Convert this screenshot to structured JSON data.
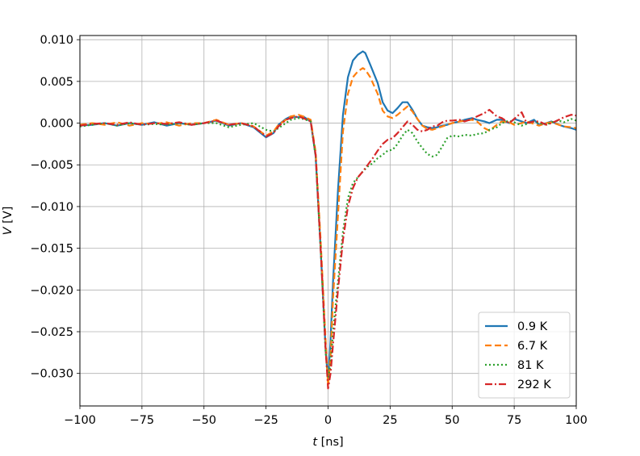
{
  "chart_data": {
    "type": "line",
    "xlabel_var": "t",
    "xlabel_unit": " [ns]",
    "ylabel_var": "V",
    "ylabel_unit": " [V]",
    "xlim": [
      -100,
      100
    ],
    "ylim": [
      -0.0339,
      0.0105
    ],
    "xticks": [
      -100,
      -75,
      -50,
      -25,
      0,
      25,
      50,
      75,
      100
    ],
    "xtick_labels": [
      "−100",
      "−75",
      "−50",
      "−25",
      "0",
      "25",
      "50",
      "75",
      "100"
    ],
    "yticks": [
      0.01,
      0.005,
      0.0,
      -0.005,
      -0.01,
      -0.015,
      -0.02,
      -0.025,
      -0.03
    ],
    "ytick_labels": [
      "0.010",
      "0.005",
      "0.000",
      "−0.005",
      "−0.010",
      "−0.015",
      "−0.020",
      "−0.025",
      "−0.030"
    ],
    "grid": true,
    "legend_position": "bottom-right",
    "series": [
      {
        "name": "0.9 K",
        "color": "#1f77b4",
        "dash": "solid",
        "x": [
          -100,
          -95,
          -90,
          -85,
          -80,
          -75,
          -70,
          -65,
          -60,
          -55,
          -50,
          -45,
          -40,
          -35,
          -30,
          -25,
          -22,
          -20,
          -17,
          -15,
          -12,
          -10,
          -7,
          -5,
          -3,
          -1,
          0,
          1,
          2,
          4,
          6,
          8,
          10,
          12,
          14,
          15,
          17,
          20,
          22,
          24,
          26,
          28,
          30,
          32,
          34,
          36,
          38,
          40,
          42,
          44,
          46,
          48,
          50,
          53,
          55,
          58,
          60,
          63,
          65,
          68,
          70,
          73,
          75,
          78,
          80,
          83,
          85,
          88,
          90,
          93,
          95,
          98,
          100
        ],
        "y": [
          -0.0003,
          -0.0002,
          0.0,
          -0.0003,
          0.0,
          -0.0002,
          0.0001,
          -0.0003,
          0.0,
          -0.0002,
          0.0,
          0.0003,
          -0.0003,
          0.0,
          -0.0005,
          -0.0017,
          -0.0012,
          -0.0002,
          0.0005,
          0.0008,
          0.0007,
          0.0008,
          0.0002,
          -0.004,
          -0.015,
          -0.027,
          -0.031,
          -0.026,
          -0.019,
          -0.008,
          0.001,
          0.0055,
          0.0075,
          0.0082,
          0.0086,
          0.0084,
          0.007,
          0.0048,
          0.0025,
          0.0015,
          0.0012,
          0.0018,
          0.0025,
          0.0025,
          0.0016,
          0.0005,
          -0.0003,
          -0.0005,
          -0.0006,
          -0.0005,
          -0.0003,
          -0.0002,
          0.0,
          0.0002,
          0.0004,
          0.0006,
          0.0004,
          0.0002,
          0.0,
          0.0004,
          0.0004,
          0.0,
          0.0005,
          0.0002,
          0.0,
          0.0004,
          -0.0002,
          0.0,
          0.0002,
          -0.0002,
          -0.0004,
          -0.0006,
          -0.0008
        ]
      },
      {
        "name": "6.7 K",
        "color": "#ff7f0e",
        "dash": "8,4",
        "x": [
          -100,
          -95,
          -90,
          -85,
          -80,
          -75,
          -70,
          -65,
          -60,
          -55,
          -50,
          -45,
          -40,
          -35,
          -30,
          -25,
          -22,
          -20,
          -17,
          -15,
          -12,
          -10,
          -7,
          -5,
          -3,
          -1,
          0,
          1,
          2,
          4,
          6,
          8,
          10,
          12,
          14,
          15,
          17,
          20,
          22,
          24,
          26,
          28,
          30,
          32,
          34,
          36,
          38,
          40,
          42,
          44,
          46,
          48,
          50,
          53,
          55,
          58,
          60,
          63,
          65,
          68,
          70,
          73,
          75,
          78,
          80,
          83,
          85,
          88,
          90,
          93,
          95,
          98,
          100
        ],
        "y": [
          -0.0002,
          0.0,
          -0.0002,
          0.0001,
          -0.0003,
          0.0,
          -0.0001,
          0.0001,
          -0.0003,
          0.0,
          0.0,
          0.0004,
          -0.0002,
          0.0,
          -0.0004,
          -0.0015,
          -0.001,
          -0.0002,
          0.0004,
          0.0008,
          0.001,
          0.0008,
          0.0004,
          -0.0035,
          -0.014,
          -0.026,
          -0.0315,
          -0.028,
          -0.021,
          -0.011,
          -0.001,
          0.0035,
          0.0055,
          0.0062,
          0.0066,
          0.0064,
          0.0055,
          0.0035,
          0.0015,
          0.0008,
          0.0006,
          0.001,
          0.0015,
          0.002,
          0.0014,
          0.0005,
          -0.0003,
          -0.0007,
          -0.0008,
          -0.0006,
          -0.0004,
          -0.0002,
          0.0,
          0.0002,
          0.0003,
          0.0004,
          0.0002,
          -0.0006,
          -0.0009,
          -0.0002,
          0.0002,
          0.0001,
          -0.0002,
          0.0,
          0.0002,
          -0.0001,
          -0.0003,
          0.0,
          0.0001,
          -0.0002,
          -0.0004,
          -0.0005,
          -0.0006
        ]
      },
      {
        "name": "81 K",
        "color": "#2ca02c",
        "dash": "2,3",
        "x": [
          -100,
          -95,
          -90,
          -85,
          -80,
          -75,
          -70,
          -65,
          -60,
          -55,
          -50,
          -45,
          -40,
          -35,
          -30,
          -25,
          -22,
          -20,
          -17,
          -15,
          -12,
          -10,
          -7,
          -5,
          -3,
          -1,
          0,
          1,
          2,
          4,
          6,
          8,
          10,
          12,
          14,
          16,
          18,
          20,
          22,
          24,
          26,
          28,
          30,
          32,
          34,
          36,
          38,
          40,
          42,
          44,
          46,
          48,
          50,
          53,
          55,
          58,
          60,
          63,
          65,
          68,
          70,
          73,
          75,
          78,
          80,
          83,
          85,
          88,
          90,
          93,
          95,
          98,
          100
        ],
        "y": [
          -0.0004,
          -0.0002,
          0.0,
          -0.0003,
          0.0,
          -0.0002,
          -0.0001,
          -0.0002,
          0.0,
          -0.0002,
          0.0,
          0.0,
          -0.0005,
          -0.0002,
          0.0,
          -0.0008,
          -0.001,
          -0.0006,
          0.0,
          0.0004,
          0.0006,
          0.0005,
          0.0002,
          -0.004,
          -0.015,
          -0.0275,
          -0.0305,
          -0.029,
          -0.025,
          -0.019,
          -0.013,
          -0.009,
          -0.0072,
          -0.0065,
          -0.0058,
          -0.0052,
          -0.0048,
          -0.0042,
          -0.0038,
          -0.0033,
          -0.0032,
          -0.0025,
          -0.0015,
          -0.0008,
          -0.0012,
          -0.0022,
          -0.003,
          -0.0037,
          -0.004,
          -0.0038,
          -0.0028,
          -0.0018,
          -0.0015,
          -0.0016,
          -0.0014,
          -0.0015,
          -0.0013,
          -0.0012,
          -0.0008,
          -0.0005,
          0.0,
          0.0003,
          0.0001,
          -0.0003,
          -0.0001,
          0.0002,
          0.0,
          -0.0002,
          0.0001,
          0.0003,
          0.0001,
          0.0005,
          0.0003
        ]
      },
      {
        "name": "292 K",
        "color": "#d62728",
        "dash": "9,3,2,3",
        "x": [
          -100,
          -95,
          -90,
          -85,
          -80,
          -75,
          -70,
          -65,
          -60,
          -55,
          -50,
          -45,
          -40,
          -35,
          -30,
          -25,
          -22,
          -20,
          -17,
          -15,
          -12,
          -10,
          -7,
          -5,
          -3,
          -1,
          0,
          1,
          2,
          4,
          6,
          8,
          10,
          12,
          14,
          16,
          18,
          20,
          22,
          24,
          26,
          28,
          30,
          32,
          34,
          36,
          38,
          40,
          42,
          44,
          46,
          48,
          50,
          53,
          55,
          58,
          60,
          63,
          65,
          68,
          70,
          73,
          75,
          78,
          80,
          83,
          85,
          88,
          90,
          93,
          95,
          98,
          100
        ],
        "y": [
          -0.0003,
          -0.0001,
          0.0,
          -0.0002,
          0.0001,
          -0.0002,
          0.0,
          -0.0001,
          0.0001,
          -0.0002,
          0.0,
          0.0003,
          -0.0002,
          0.0,
          -0.0004,
          -0.0016,
          -0.0012,
          -0.0004,
          0.0004,
          0.0006,
          0.0008,
          0.0006,
          0.0002,
          -0.0038,
          -0.015,
          -0.027,
          -0.0318,
          -0.03,
          -0.0265,
          -0.02,
          -0.014,
          -0.01,
          -0.0078,
          -0.0065,
          -0.0058,
          -0.005,
          -0.0042,
          -0.0033,
          -0.0025,
          -0.002,
          -0.0018,
          -0.0012,
          -0.0005,
          0.0002,
          -0.0002,
          -0.0008,
          -0.001,
          -0.0008,
          -0.0004,
          -0.0003,
          0.0001,
          0.0003,
          0.0003,
          0.0004,
          0.0002,
          0.0005,
          0.0008,
          0.0012,
          0.0016,
          0.0008,
          0.0006,
          0.0,
          0.0005,
          0.0013,
          0.0,
          0.0002,
          0.0002,
          -0.0002,
          0.0,
          0.0004,
          0.0007,
          0.001,
          0.0009
        ]
      }
    ]
  }
}
